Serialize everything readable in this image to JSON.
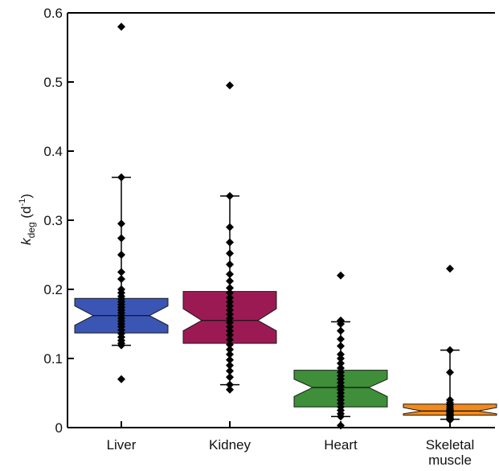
{
  "chart_data": {
    "type": "box",
    "title": "",
    "xlabel": "",
    "ylabel": {
      "main": "k",
      "subscript": "deg",
      "unit_open": " (d",
      "unit_sup": "-1",
      "unit_close": ")"
    },
    "ylim": [
      0,
      0.6
    ],
    "yticks": [
      "0",
      "0.1",
      "0.2",
      "0.3",
      "0.4",
      "0.5",
      "0.6"
    ],
    "grid": false,
    "notched": true,
    "categories": [
      {
        "label_lines": [
          "Liver"
        ],
        "color": "#3a55b4",
        "q1": 0.137,
        "median": 0.162,
        "q3": 0.187,
        "notch_low": 0.148,
        "notch_high": 0.176,
        "whisker_low": 0.119,
        "whisker_high": 0.362,
        "points": [
          0.58,
          0.362,
          0.295,
          0.274,
          0.25,
          0.225,
          0.215,
          0.2,
          0.195,
          0.19,
          0.186,
          0.182,
          0.178,
          0.174,
          0.17,
          0.166,
          0.162,
          0.158,
          0.154,
          0.15,
          0.146,
          0.141,
          0.136,
          0.131,
          0.126,
          0.122,
          0.119,
          0.07
        ]
      },
      {
        "label_lines": [
          "Kidney"
        ],
        "color": "#9c1a53",
        "q1": 0.122,
        "median": 0.155,
        "q3": 0.197,
        "notch_low": 0.14,
        "notch_high": 0.172,
        "whisker_low": 0.062,
        "whisker_high": 0.335,
        "points": [
          0.495,
          0.335,
          0.29,
          0.268,
          0.252,
          0.236,
          0.222,
          0.212,
          0.202,
          0.195,
          0.188,
          0.182,
          0.176,
          0.17,
          0.164,
          0.158,
          0.152,
          0.146,
          0.14,
          0.134,
          0.127,
          0.12,
          0.113,
          0.106,
          0.098,
          0.09,
          0.082,
          0.073,
          0.062,
          0.055
        ]
      },
      {
        "label_lines": [
          "Heart"
        ],
        "color": "#3e8e3a",
        "q1": 0.03,
        "median": 0.058,
        "q3": 0.083,
        "notch_low": 0.045,
        "notch_high": 0.07,
        "whisker_low": 0.016,
        "whisker_high": 0.153,
        "points": [
          0.22,
          0.155,
          0.15,
          0.14,
          0.128,
          0.118,
          0.106,
          0.1,
          0.093,
          0.086,
          0.08,
          0.075,
          0.07,
          0.065,
          0.06,
          0.055,
          0.05,
          0.045,
          0.04,
          0.035,
          0.03,
          0.025,
          0.02,
          0.016,
          0.003
        ]
      },
      {
        "label_lines": [
          "Skeletal",
          "muscle"
        ],
        "color": "#f28a1e",
        "q1": 0.018,
        "median": 0.024,
        "q3": 0.034,
        "notch_low": 0.02,
        "notch_high": 0.029,
        "whisker_low": 0.012,
        "whisker_high": 0.112,
        "points": [
          0.23,
          0.112,
          0.08,
          0.04,
          0.036,
          0.033,
          0.03,
          0.027,
          0.025,
          0.023,
          0.021,
          0.019,
          0.017,
          0.015,
          0.013,
          0.011
        ]
      }
    ]
  }
}
